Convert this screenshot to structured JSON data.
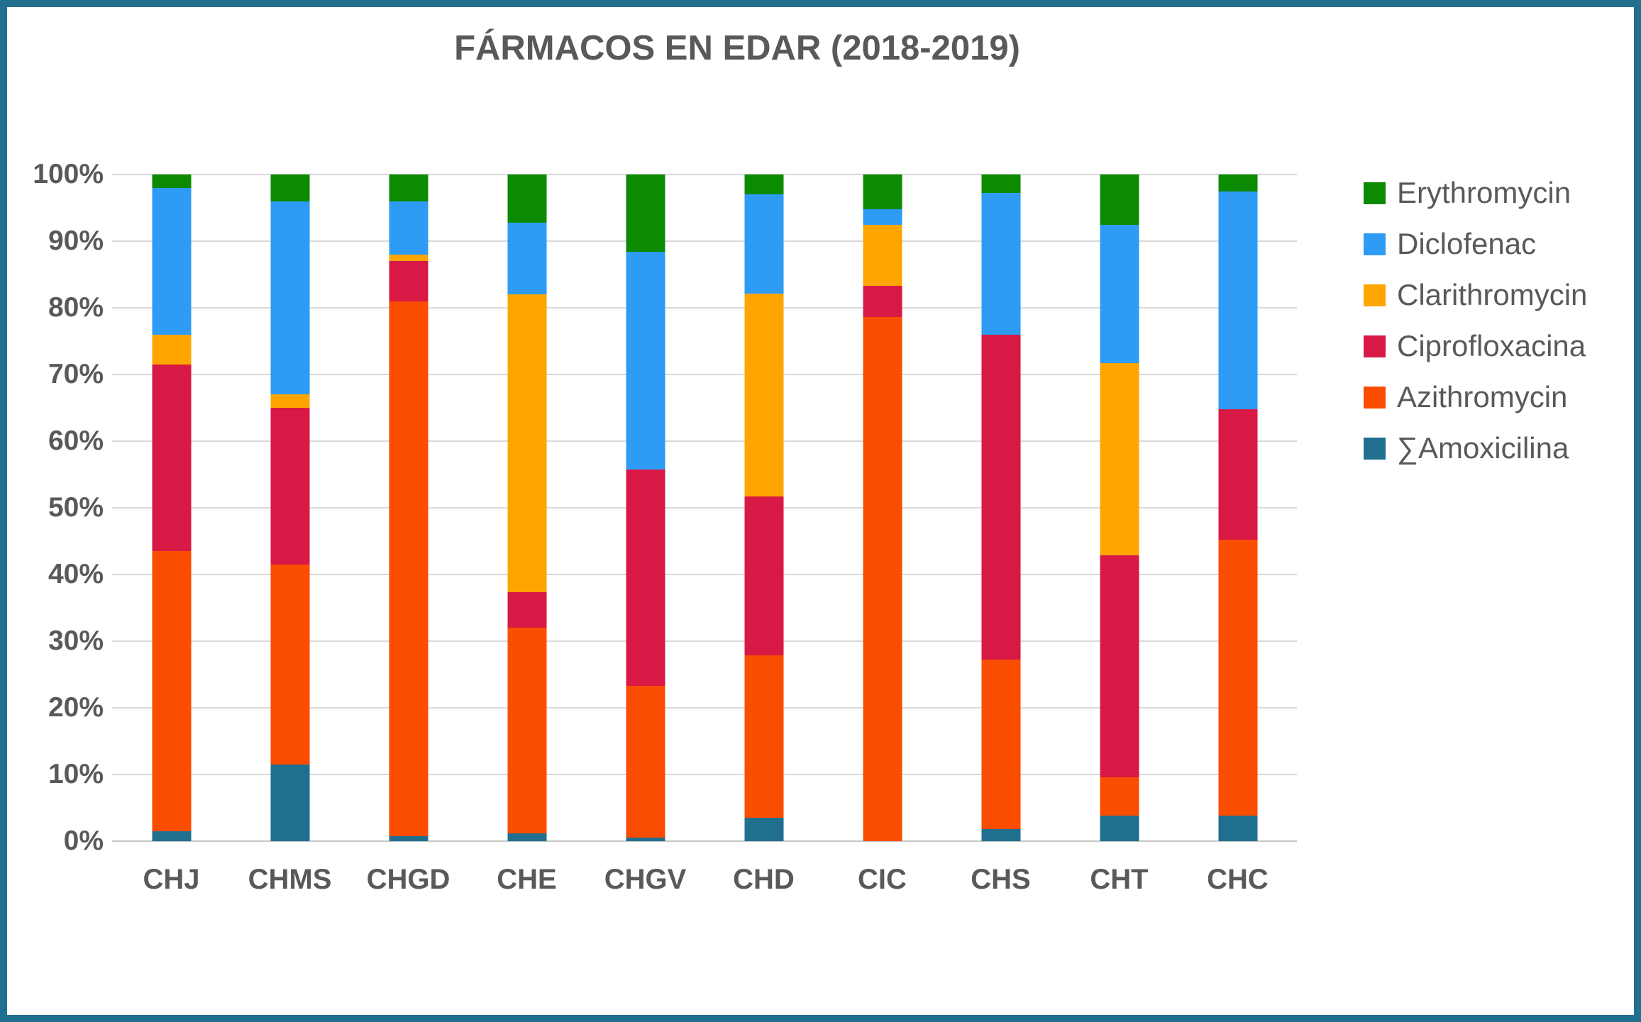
{
  "frame": {
    "border_color": "#216F8F",
    "background_color": "#FFFFFF"
  },
  "text_color": "#595959",
  "chart_data": {
    "type": "bar",
    "variant": "stacked-100-percent-vertical",
    "title": "FÁRMACOS EN EDAR (2018-2019)",
    "categories": [
      "CHJ",
      "CHMS",
      "CHGD",
      "CHE",
      "CHGV",
      "CHD",
      "CIC",
      "CHS",
      "CHT",
      "CHC"
    ],
    "series_bottom_to_top": [
      {
        "name": "∑Amoxicilina",
        "color": "#216F8F",
        "values": [
          1.5,
          11.5,
          0.7,
          1.2,
          0.5,
          3.5,
          0,
          1.8,
          3.8,
          3.8
        ]
      },
      {
        "name": "Azithromycin",
        "color": "#FB4D00",
        "values": [
          42,
          30,
          80.3,
          30.8,
          22.8,
          24.4,
          78.6,
          25.4,
          5.8,
          41.4
        ]
      },
      {
        "name": "Ciprofloxacina",
        "color": "#D81845",
        "values": [
          28,
          23.5,
          6,
          5.3,
          32.4,
          23.8,
          4.7,
          48.8,
          33.3,
          19.6
        ]
      },
      {
        "name": "Clarithromycin",
        "color": "#FFA500",
        "values": [
          4.5,
          2,
          1,
          44.7,
          0,
          30.4,
          9.2,
          0,
          28.8,
          0
        ]
      },
      {
        "name": "Diclofenac",
        "color": "#2E9BF5",
        "values": [
          22,
          29,
          8,
          10.8,
          32.7,
          14.9,
          2.3,
          21.2,
          20.8,
          32.7
        ]
      },
      {
        "name": "Erythromycin",
        "color": "#0C8A00",
        "values": [
          2,
          4,
          4,
          7.2,
          11.6,
          3,
          5.2,
          2.8,
          7.5,
          2.5
        ]
      }
    ],
    "legend": {
      "position": "right",
      "order_top_to_bottom": [
        "Erythromycin",
        "Diclofenac",
        "Clarithromycin",
        "Ciprofloxacina",
        "Azithromycin",
        "∑Amoxicilina"
      ]
    },
    "y_axis": {
      "min": 0,
      "max": 100,
      "ticks_top_to_bottom": [
        "100%",
        "90%",
        "80%",
        "70%",
        "60%",
        "50%",
        "40%",
        "30%",
        "20%",
        "10%",
        "0%"
      ],
      "grid": true,
      "grid_color": "#D9D9D9"
    }
  }
}
